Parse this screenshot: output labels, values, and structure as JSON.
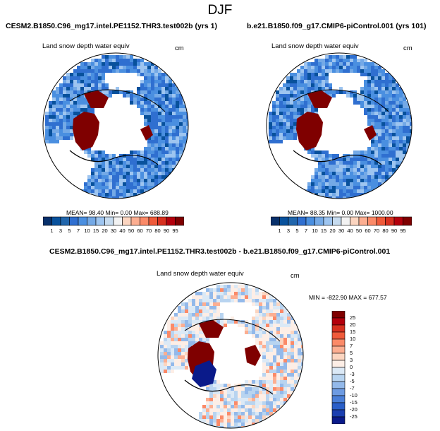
{
  "page": {
    "season": "DJF"
  },
  "panels": {
    "top_left": {
      "case": "CESM2.B1850.C96_mg17.intel.PE1152.THR3.test002b (yrs 1)",
      "variable": "Land snow depth water equiv",
      "units": "cm",
      "stats": "MEAN=  98.40  Min=   0.00  Max= 688.89"
    },
    "top_right": {
      "case": "b.e21.B1850.f09_g17.CMIP6-piControl.001 (yrs 101)",
      "variable": "Land snow depth water equiv",
      "units": "cm",
      "stats": "MEAN=  88.35  Min=   0.00  Max= 1000.00"
    },
    "bottom": {
      "case": "CESM2.B1850.C96_mg17.intel.PE1152.THR3.test002b - b.e21.B1850.f09_g17.CMIP6-piControl.001",
      "variable": "Land snow depth water equiv",
      "units": "cm",
      "stats": "MIN = -822.90 MAX = 677.57"
    }
  },
  "chart_data": [
    {
      "type": "heatmap",
      "projection": "north-polar-stereographic",
      "title": "CESM2.B1850.C96_mg17.intel.PE1152.THR3.test002b (yrs 1)",
      "variable": "Land snow depth water equiv",
      "units": "cm",
      "mean": 98.4,
      "min": 0.0,
      "max": 688.89,
      "colorbar": {
        "orientation": "horizontal",
        "levels": [
          1,
          3,
          5,
          7,
          10,
          15,
          20,
          30,
          40,
          50,
          60,
          70,
          80,
          90,
          95
        ],
        "colors": [
          "#08306b",
          "#08519c",
          "#2166ac",
          "#2f6fd0",
          "#4a8fe0",
          "#74a9e6",
          "#9ec5f0",
          "#c6dbef",
          "#f2f2f2",
          "#fcd5c0",
          "#fcae91",
          "#fb8a68",
          "#ef5a3a",
          "#d7301f",
          "#b3000c",
          "#7f0000"
        ]
      }
    },
    {
      "type": "heatmap",
      "projection": "north-polar-stereographic",
      "title": "b.e21.B1850.f09_g17.CMIP6-piControl.001 (yrs 101)",
      "variable": "Land snow depth water equiv",
      "units": "cm",
      "mean": 88.35,
      "min": 0.0,
      "max": 1000.0,
      "colorbar": {
        "orientation": "horizontal",
        "levels": [
          1,
          3,
          5,
          7,
          10,
          15,
          20,
          30,
          40,
          50,
          60,
          70,
          80,
          90,
          95
        ],
        "colors": [
          "#08306b",
          "#08519c",
          "#2166ac",
          "#2f6fd0",
          "#4a8fe0",
          "#74a9e6",
          "#9ec5f0",
          "#c6dbef",
          "#f2f2f2",
          "#fcd5c0",
          "#fcae91",
          "#fb8a68",
          "#ef5a3a",
          "#d7301f",
          "#b3000c",
          "#7f0000"
        ]
      }
    },
    {
      "type": "heatmap",
      "projection": "north-polar-stereographic",
      "title": "CESM2.B1850.C96_mg17.intel.PE1152.THR3.test002b - b.e21.B1850.f09_g17.CMIP6-piControl.001",
      "variable": "Land snow depth water equiv",
      "units": "cm",
      "min": -822.9,
      "max": 677.57,
      "colorbar": {
        "orientation": "vertical",
        "levels": [
          25,
          20,
          15,
          10,
          7,
          5,
          3,
          0,
          -3,
          -5,
          -7,
          -10,
          -15,
          -20,
          -25
        ],
        "colors": [
          "#7f0000",
          "#b3000c",
          "#d7301f",
          "#ef5a3a",
          "#fb8a68",
          "#fcae91",
          "#fcd5c0",
          "#fdeee6",
          "#dbe9f6",
          "#b8d4f0",
          "#93b9ea",
          "#6d9be2",
          "#4a7fd8",
          "#2a5fc8",
          "#1b3fb0",
          "#0a1a8a"
        ]
      }
    }
  ]
}
